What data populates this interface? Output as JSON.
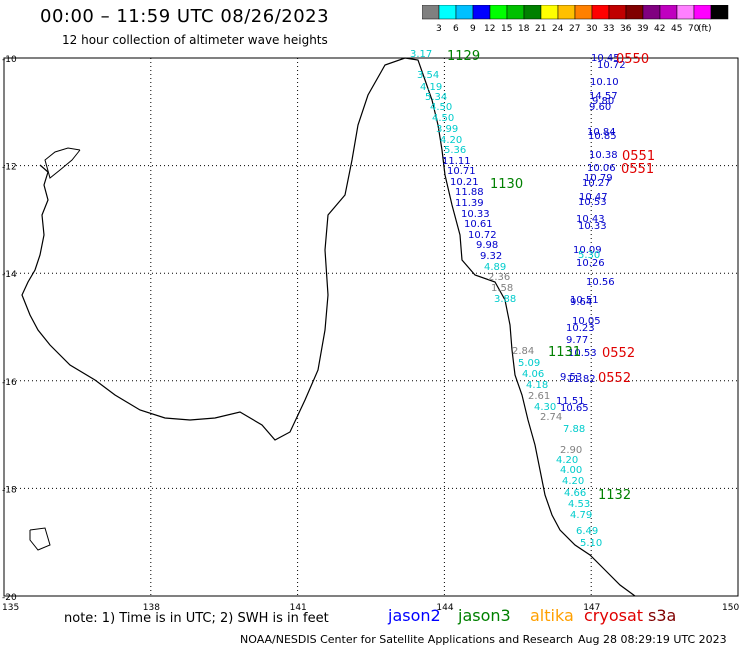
{
  "title": "00:00 – 11:59 UTC 08/26/2023",
  "subtitle": "12 hour collection of altimeter wave heights",
  "legend": {
    "colors": [
      "#808080",
      "#00ffff",
      "#00c0ff",
      "#0000ff",
      "#00ff00",
      "#00c000",
      "#008000",
      "#ffff00",
      "#ffc000",
      "#ff8000",
      "#ff0000",
      "#c00000",
      "#800000",
      "#800080",
      "#c000c0",
      "#ff80ff",
      "#ff00ff",
      "#000000"
    ],
    "labels": [
      "3",
      "6",
      "9",
      "12",
      "15",
      "18",
      "21",
      "24",
      "27",
      "30",
      "33",
      "36",
      "39",
      "42",
      "45",
      "70",
      "(ft)"
    ]
  },
  "axes": {
    "lat_labels": [
      "-10",
      "-12",
      "-14",
      "-16",
      "-18",
      "-20"
    ],
    "lon_labels": [
      "135",
      "138",
      "141",
      "144",
      "147",
      "150"
    ]
  },
  "tracks": [
    {
      "id": "1129",
      "name_color": "#008000",
      "label_color": "#008000"
    },
    {
      "id": "1130",
      "name_color": "#008000",
      "label_color": "#008000"
    },
    {
      "id": "1131",
      "name_color": "#008000",
      "label_color": "#008000"
    },
    {
      "id": "1132",
      "name_color": "#008000",
      "label_color": "#008000"
    },
    {
      "id": "0550",
      "name_color": "#e00000",
      "label_color": "#e00000"
    },
    {
      "id": "0551",
      "name_color": "#e00000",
      "label_color": "#e00000"
    },
    {
      "id": "0552",
      "name_color": "#e00000",
      "label_color": "#e00000"
    }
  ],
  "observations": [
    {
      "v": "3.17",
      "c": "#00cccc"
    },
    {
      "v": "3.54",
      "c": "#00cccc"
    },
    {
      "v": "4.19",
      "c": "#00cccc"
    },
    {
      "v": "5.34",
      "c": "#00cccc"
    },
    {
      "v": "4.50",
      "c": "#00cccc"
    },
    {
      "v": "4.50",
      "c": "#00cccc"
    },
    {
      "v": "3.99",
      "c": "#00cccc"
    },
    {
      "v": "4.20",
      "c": "#00cccc"
    },
    {
      "v": "5.36",
      "c": "#00cccc"
    },
    {
      "v": "11.11",
      "c": "#0000cc"
    },
    {
      "v": "10.71",
      "c": "#0000cc"
    },
    {
      "v": "10.21",
      "c": "#0000cc"
    },
    {
      "v": "11.88",
      "c": "#0000cc"
    },
    {
      "v": "11.39",
      "c": "#0000cc"
    },
    {
      "v": "10.33",
      "c": "#0000cc"
    },
    {
      "v": "10.61",
      "c": "#0000cc"
    },
    {
      "v": "10.72",
      "c": "#0000cc"
    },
    {
      "v": "9.98",
      "c": "#0000cc"
    },
    {
      "v": "9.32",
      "c": "#0000cc"
    },
    {
      "v": "4.89",
      "c": "#00cccc"
    },
    {
      "v": "2.36",
      "c": "#808080"
    },
    {
      "v": "1.58",
      "c": "#808080"
    },
    {
      "v": "3.88",
      "c": "#00cccc"
    },
    {
      "v": "2.84",
      "c": "#808080"
    },
    {
      "v": "5.09",
      "c": "#00cccc"
    },
    {
      "v": "4.06",
      "c": "#00cccc"
    },
    {
      "v": "4.18",
      "c": "#00cccc"
    },
    {
      "v": "2.61",
      "c": "#808080"
    },
    {
      "v": "4.30",
      "c": "#00cccc"
    },
    {
      "v": "2.74",
      "c": "#808080"
    },
    {
      "v": "7.88",
      "c": "#00cccc"
    },
    {
      "v": "2.90",
      "c": "#808080"
    },
    {
      "v": "4.20",
      "c": "#00cccc"
    },
    {
      "v": "4.00",
      "c": "#00cccc"
    },
    {
      "v": "4.20",
      "c": "#00cccc"
    },
    {
      "v": "4.66",
      "c": "#00cccc"
    },
    {
      "v": "4.53",
      "c": "#00cccc"
    },
    {
      "v": "4.79",
      "c": "#00cccc"
    },
    {
      "v": "6.49",
      "c": "#00cccc"
    },
    {
      "v": "5.10",
      "c": "#00cccc"
    },
    {
      "v": "10.45",
      "c": "#0000cc"
    },
    {
      "v": "10.72",
      "c": "#0000cc"
    },
    {
      "v": "10.10",
      "c": "#0000cc"
    },
    {
      "v": "14.57",
      "c": "#0000cc"
    },
    {
      "v": "9.80",
      "c": "#0000cc"
    },
    {
      "v": "9.60",
      "c": "#0000cc"
    },
    {
      "v": "10.84",
      "c": "#0000cc"
    },
    {
      "v": "10.85",
      "c": "#0000cc"
    },
    {
      "v": "10.38",
      "c": "#0000cc"
    },
    {
      "v": "10.06",
      "c": "#0000cc"
    },
    {
      "v": "10.79",
      "c": "#0000cc"
    },
    {
      "v": "10.27",
      "c": "#0000cc"
    },
    {
      "v": "10.47",
      "c": "#0000cc"
    },
    {
      "v": "10.53",
      "c": "#0000cc"
    },
    {
      "v": "10.43",
      "c": "#0000cc"
    },
    {
      "v": "10.33",
      "c": "#0000cc"
    },
    {
      "v": "10.09",
      "c": "#0000cc"
    },
    {
      "v": "5.30",
      "c": "#00cccc"
    },
    {
      "v": "10.26",
      "c": "#0000cc"
    },
    {
      "v": "10.56",
      "c": "#0000cc"
    },
    {
      "v": "10.51",
      "c": "#0000cc"
    },
    {
      "v": "9.64",
      "c": "#0000cc"
    },
    {
      "v": "10.05",
      "c": "#0000cc"
    },
    {
      "v": "10.23",
      "c": "#0000cc"
    },
    {
      "v": "9.77",
      "c": "#0000cc"
    },
    {
      "v": "10.53",
      "c": "#0000cc"
    },
    {
      "v": "9.53",
      "c": "#0000cc"
    },
    {
      "v": "11.82",
      "c": "#0000cc"
    },
    {
      "v": "11.51",
      "c": "#0000cc"
    },
    {
      "v": "10.65",
      "c": "#0000cc"
    }
  ],
  "footer": {
    "note": "note:  1) Time is in UTC;  2) SWH is in feet",
    "satellites": [
      {
        "name": "jason2",
        "color": "#0000ff"
      },
      {
        "name": "jason3",
        "color": "#008000"
      },
      {
        "name": "altika",
        "color": "#ffa000"
      },
      {
        "name": "cryosat",
        "color": "#e00000"
      },
      {
        "name": "s3a",
        "color": "#800000"
      }
    ],
    "credit": "NOAA/NESDIS Center for Satellite Applications and Research",
    "timestamp": "Aug 28 08:29:19 UTC 2023"
  }
}
